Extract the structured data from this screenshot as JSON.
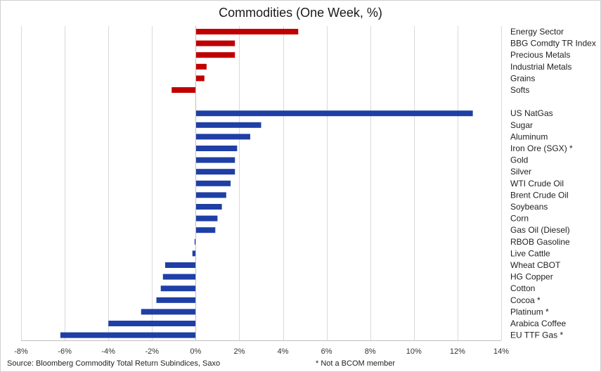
{
  "chart_data": {
    "type": "bar",
    "orientation": "horizontal",
    "title": "Commodities (One Week, %)",
    "xlim": [
      -8,
      14
    ],
    "x_ticks": [
      "-8%",
      "-6%",
      "-4%",
      "-2%",
      "0%",
      "2%",
      "4%",
      "6%",
      "8%",
      "10%",
      "12%",
      "14%"
    ],
    "x_tick_values": [
      -8,
      -6,
      -4,
      -2,
      0,
      2,
      4,
      6,
      8,
      10,
      12,
      14
    ],
    "grid": true,
    "colors": {
      "sector": "#c00000",
      "commodity": "#1f3fa6"
    },
    "groups": [
      {
        "group": "sector",
        "categories": [
          "Energy Sector",
          "BBG Comdty TR Index",
          "Precious Metals",
          "Industrial Metals",
          "Grains",
          "Softs"
        ],
        "values": [
          4.7,
          1.8,
          1.8,
          0.5,
          0.4,
          -1.1
        ]
      },
      {
        "group": "commodity",
        "categories": [
          "US NatGas",
          "Sugar",
          "Aluminum",
          "Iron Ore (SGX) *",
          "Gold",
          "Silver",
          "WTI Crude Oil",
          "Brent Crude Oil",
          "Soybeans",
          "Corn",
          "Gas Oil (Diesel)",
          "RBOB Gasoline",
          "Live Cattle",
          "Wheat CBOT",
          "HG Copper",
          "Cotton",
          "Cocoa *",
          "Platinum *",
          "Arabica Coffee",
          "EU TTF Gas *"
        ],
        "values": [
          12.7,
          3.0,
          2.5,
          1.9,
          1.8,
          1.8,
          1.6,
          1.4,
          1.2,
          1.0,
          0.9,
          -0.05,
          -0.15,
          -1.4,
          -1.5,
          -1.6,
          -1.8,
          -2.5,
          -4.0,
          -6.2
        ]
      }
    ]
  },
  "footer": {
    "source": "Source: Bloomberg Commodity Total Return Subindices, Saxo",
    "note": "* Not a BCOM member"
  }
}
